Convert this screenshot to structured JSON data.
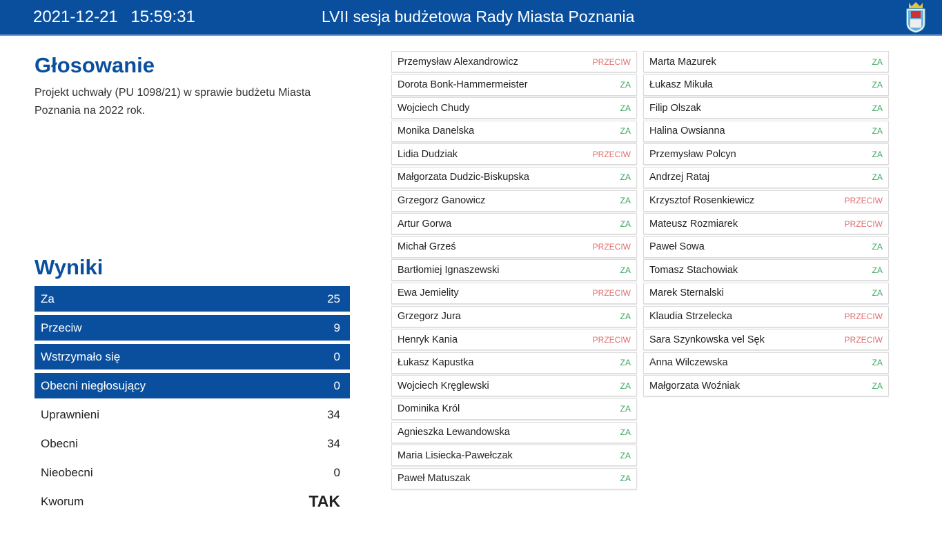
{
  "header": {
    "date": "2021-12-21",
    "time": "15:59:31",
    "title": "LVII sesja budżetowa Rady Miasta Poznania",
    "logo": "poznan-coat-of-arms"
  },
  "voting": {
    "heading": "Głosowanie",
    "description": "Projekt uchwały (PU 1098/21) w sprawie budżetu Miasta Poznania na 2022 rok."
  },
  "results": {
    "heading": "Wyniki",
    "rows": [
      {
        "label": "Za",
        "value": "25",
        "style": "blue"
      },
      {
        "label": "Przeciw",
        "value": "9",
        "style": "blue"
      },
      {
        "label": "Wstrzymało się",
        "value": "0",
        "style": "blue"
      },
      {
        "label": "Obecni niegłosujący",
        "value": "0",
        "style": "blue"
      },
      {
        "label": "Uprawnieni",
        "value": "34",
        "style": "plain"
      },
      {
        "label": "Obecni",
        "value": "34",
        "style": "plain"
      },
      {
        "label": "Nieobecni",
        "value": "0",
        "style": "plain"
      },
      {
        "label": "Kworum",
        "value": "TAK",
        "style": "plain"
      }
    ]
  },
  "colors": {
    "primary": "#0a4f9e",
    "za": "#3aa860",
    "przeciw": "#e07070"
  },
  "votes_left": [
    {
      "name": "Przemysław Alexandrowicz",
      "vote": "PRZECIW"
    },
    {
      "name": "Dorota Bonk-Hammermeister",
      "vote": "ZA"
    },
    {
      "name": "Wojciech Chudy",
      "vote": "ZA"
    },
    {
      "name": "Monika Danelska",
      "vote": "ZA"
    },
    {
      "name": "Lidia Dudziak",
      "vote": "PRZECIW"
    },
    {
      "name": "Małgorzata Dudzic-Biskupska",
      "vote": "ZA"
    },
    {
      "name": "Grzegorz Ganowicz",
      "vote": "ZA"
    },
    {
      "name": "Artur Gorwa",
      "vote": "ZA"
    },
    {
      "name": "Michał Grześ",
      "vote": "PRZECIW"
    },
    {
      "name": "Bartłomiej Ignaszewski",
      "vote": "ZA"
    },
    {
      "name": "Ewa Jemielity",
      "vote": "PRZECIW"
    },
    {
      "name": "Grzegorz Jura",
      "vote": "ZA"
    },
    {
      "name": "Henryk Kania",
      "vote": "PRZECIW"
    },
    {
      "name": "Łukasz Kapustka",
      "vote": "ZA"
    },
    {
      "name": "Wojciech Kręglewski",
      "vote": "ZA"
    },
    {
      "name": "Dominika Król",
      "vote": "ZA"
    },
    {
      "name": "Agnieszka Lewandowska",
      "vote": "ZA"
    },
    {
      "name": "Maria Lisiecka-Pawełczak",
      "vote": "ZA"
    },
    {
      "name": "Paweł Matuszak",
      "vote": "ZA"
    }
  ],
  "votes_right": [
    {
      "name": "Marta Mazurek",
      "vote": "ZA"
    },
    {
      "name": "Łukasz Mikuła",
      "vote": "ZA"
    },
    {
      "name": "Filip Olszak",
      "vote": "ZA"
    },
    {
      "name": "Halina Owsianna",
      "vote": "ZA"
    },
    {
      "name": "Przemysław Polcyn",
      "vote": "ZA"
    },
    {
      "name": "Andrzej Rataj",
      "vote": "ZA"
    },
    {
      "name": "Krzysztof Rosenkiewicz",
      "vote": "PRZECIW"
    },
    {
      "name": "Mateusz Rozmiarek",
      "vote": "PRZECIW"
    },
    {
      "name": "Paweł Sowa",
      "vote": "ZA"
    },
    {
      "name": "Tomasz Stachowiak",
      "vote": "ZA"
    },
    {
      "name": "Marek Sternalski",
      "vote": "ZA"
    },
    {
      "name": "Klaudia Strzelecka",
      "vote": "PRZECIW"
    },
    {
      "name": "Sara Szynkowska vel Sęk",
      "vote": "PRZECIW"
    },
    {
      "name": "Anna Wilczewska",
      "vote": "ZA"
    },
    {
      "name": "Małgorzata Woźniak",
      "vote": "ZA"
    }
  ]
}
